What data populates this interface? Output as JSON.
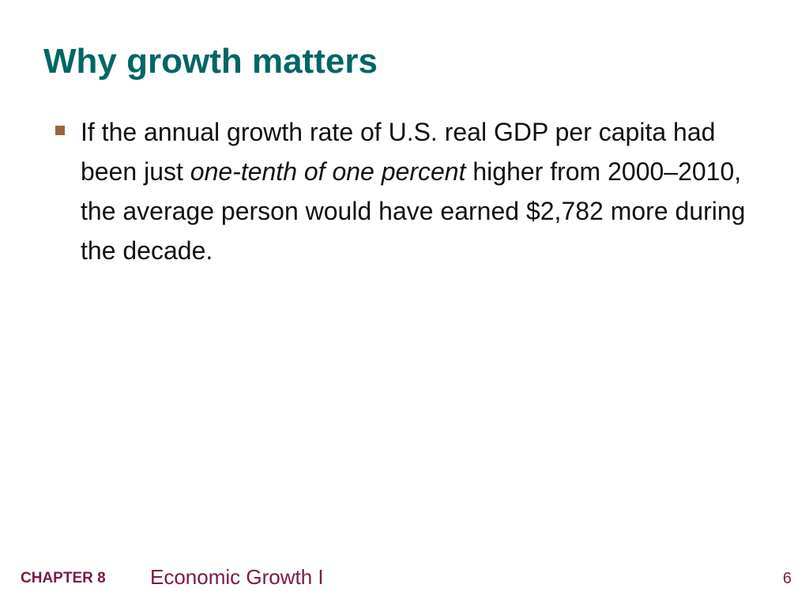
{
  "slide": {
    "title": "Why growth matters",
    "bullets": [
      {
        "text_before": "If the annual growth rate of U.S. real GDP per capita had been just ",
        "emphasis": "one-tenth of one percent",
        "text_after": " higher from 2000–2010, the average person would have earned $2,782 more during the decade."
      }
    ]
  },
  "footer": {
    "chapter_label": "CHAPTER 8",
    "chapter_title": "Economic Growth I",
    "page_number": "6"
  },
  "colors": {
    "title": "#006666",
    "bullet_marker": "#99663a",
    "footer": "#7a1a4a",
    "body_text": "#111111"
  }
}
